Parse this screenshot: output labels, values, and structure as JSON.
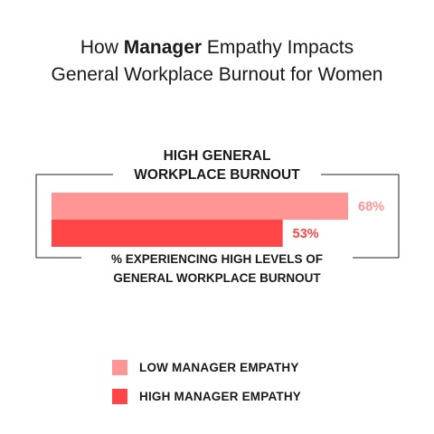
{
  "title": {
    "line1_prefix": "How ",
    "line1_bold": "Manager",
    "line1_suffix": " Empathy Impacts",
    "line2": "General Workplace Burnout for Women"
  },
  "chart_data": {
    "type": "bar",
    "orientation": "horizontal",
    "category_label": [
      "HIGH GENERAL",
      "WORKPLACE BURNOUT"
    ],
    "axis_label": [
      "% EXPERIENCING HIGH LEVELS OF",
      "GENERAL WORKPLACE BURNOUT"
    ],
    "unit": "%",
    "xlim": [
      0,
      68
    ],
    "series": [
      {
        "name": "LOW MANAGER EMPATHY",
        "value": 68,
        "label": "68%",
        "color": "#ff9595"
      },
      {
        "name": "HIGH MANAGER EMPATHY",
        "value": 53,
        "label": "53%",
        "color": "#ff4545"
      }
    ],
    "legend_position": "bottom"
  },
  "colors": {
    "low_empathy": "#ff9595",
    "high_empathy": "#ff4545",
    "frame": "#222222",
    "text": "#1a1a1a"
  }
}
